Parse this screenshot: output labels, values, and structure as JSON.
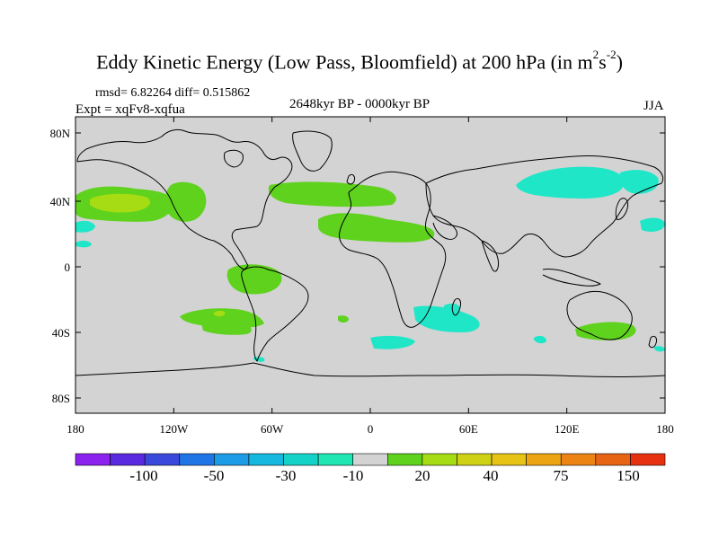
{
  "title": {
    "main": "Eddy Kinetic Energy (Low Pass, Bloomfield) at 200 hPa (in m",
    "exp1": "2",
    "mid": "s",
    "exp2": "-2",
    "close": ")"
  },
  "stats": "rmsd= 6.82264 diff= 0.515862",
  "experiment": "Expt = xqFv8-xqfua",
  "period": "2648kyr BP - 0000kyr BP",
  "season": "JJA",
  "map": {
    "lat_labels": [
      "80N",
      "40N",
      "0",
      "40S",
      "80S"
    ],
    "lon_labels": [
      "180",
      "120W",
      "60W",
      "0",
      "60E",
      "120E",
      "180"
    ],
    "ocean_color": "#d3d3d3",
    "positive_color": "#5fd21e",
    "positive_strong_color": "#a5dc14",
    "negative_color": "#20e6c8"
  },
  "colorbar": {
    "colors": [
      "#8b22ee",
      "#5a2ae0",
      "#3a49dc",
      "#1f74e6",
      "#1c9ce6",
      "#16b8e0",
      "#14d2c8",
      "#20e6b4",
      "#d3d3d3",
      "#5fd21e",
      "#a5dc14",
      "#cfd214",
      "#e6c314",
      "#eca414",
      "#ec8414",
      "#e66414",
      "#e6300f"
    ],
    "labels": [
      "-100",
      "-50",
      "-30",
      "-10",
      "20",
      "40",
      "75",
      "150"
    ]
  }
}
